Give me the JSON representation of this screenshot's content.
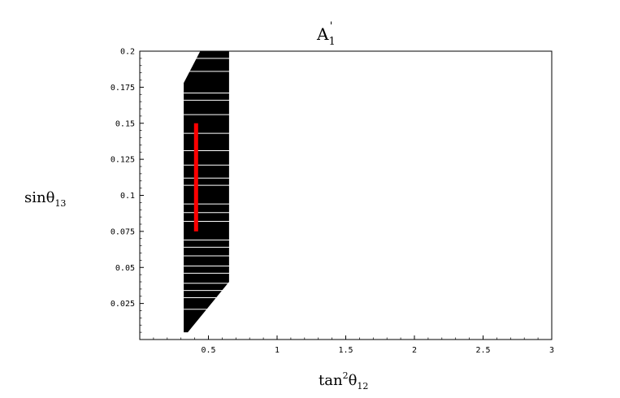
{
  "chart_data": {
    "type": "scatter",
    "title": "A",
    "title_superscript": "'",
    "title_subscript": "1",
    "xlabel": {
      "base": "tan",
      "sup": "2",
      "greek": "θ",
      "sub": "12"
    },
    "ylabel": {
      "base": "sin",
      "greek": "θ",
      "sub": "13"
    },
    "xlim": [
      0,
      3
    ],
    "ylim": [
      0,
      0.2
    ],
    "x_ticks": [
      0.5,
      1,
      1.5,
      2,
      2.5,
      3
    ],
    "x_tick_labels": [
      "0.5",
      "1",
      "1.5",
      "2",
      "2.5",
      "3"
    ],
    "y_ticks": [
      0.025,
      0.05,
      0.075,
      0.1,
      0.125,
      0.15,
      0.175,
      0.2
    ],
    "y_tick_labels": [
      "0.025",
      "0.05",
      "0.075",
      "0.1",
      "0.125",
      "0.15",
      "0.175",
      "0.2"
    ],
    "grid": false,
    "allowed_region": {
      "color": "#000000",
      "boundary": [
        [
          0.32,
          0.005
        ],
        [
          0.32,
          0.178
        ],
        [
          0.44,
          0.2
        ],
        [
          0.65,
          0.2
        ],
        [
          0.65,
          0.04
        ],
        [
          0.35,
          0.005
        ]
      ]
    },
    "highlight_line": {
      "color": "#ff0000",
      "x": 0.41,
      "y_range": [
        0.075,
        0.15
      ]
    }
  }
}
